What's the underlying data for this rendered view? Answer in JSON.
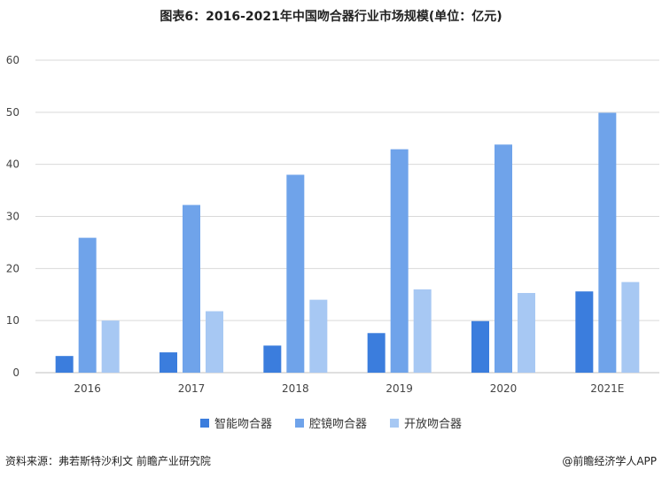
{
  "title": "图表6：2016-2021年中国吻合器行业市场规模(单位：亿元)",
  "source": "资料来源：弗若斯特沙利文 前瞻产业研究院",
  "brand": "@前瞻经济学人APP",
  "colors": {
    "series1": "#3b7ddd",
    "series2": "#6fa3ea",
    "series3": "#a7c8f3",
    "grid": "#d9d9d9"
  },
  "chart_data": {
    "type": "bar",
    "categories": [
      "2016",
      "2017",
      "2018",
      "2019",
      "2020",
      "2021E"
    ],
    "series": [
      {
        "name": "智能吻合器",
        "values": [
          3.2,
          3.9,
          5.2,
          7.6,
          9.9,
          15.6
        ]
      },
      {
        "name": "腔镜吻合器",
        "values": [
          25.9,
          32.2,
          38.0,
          42.9,
          43.8,
          49.9
        ]
      },
      {
        "name": "开放吻合器",
        "values": [
          10.0,
          11.8,
          14.0,
          16.0,
          15.3,
          17.4
        ]
      }
    ],
    "ylim": [
      0,
      60
    ],
    "yticks": [
      "0",
      "10",
      "20",
      "30",
      "40",
      "50",
      "60"
    ],
    "grid": true,
    "legend_position": "bottom"
  }
}
